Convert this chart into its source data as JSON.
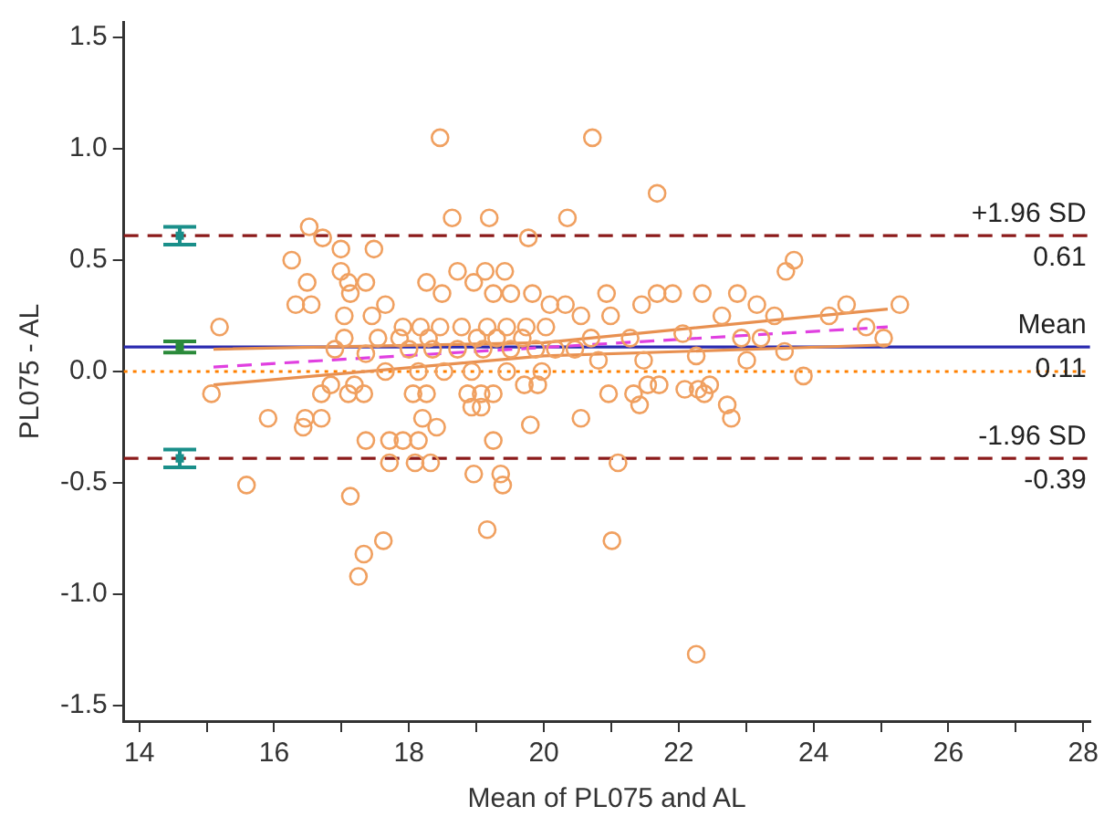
{
  "chart_data": {
    "type": "scatter",
    "xlabel": "Mean of PL075 and AL",
    "ylabel": "PL075 - AL",
    "xlim": [
      13.77,
      28.1
    ],
    "ylim": [
      -1.57,
      1.57
    ],
    "xticks": [
      14,
      {
        "value": 15,
        "label": null
      },
      16,
      {
        "value": 17,
        "label": null
      },
      18,
      {
        "value": 19,
        "label": null
      },
      20,
      {
        "value": 21,
        "label": null
      },
      22,
      {
        "value": 23,
        "label": null
      },
      24,
      {
        "value": 25,
        "label": null
      },
      26,
      {
        "value": 27,
        "label": null
      },
      28
    ],
    "yticks": [
      {
        "value": -1.5,
        "label": "-1.5"
      },
      {
        "value": -1,
        "label": "-1.0"
      },
      {
        "value": -0.5,
        "label": "-0.5"
      },
      {
        "value": 0,
        "label": "0.0"
      },
      {
        "value": 0.5,
        "label": "0.5"
      },
      {
        "value": 1,
        "label": "1.0"
      },
      {
        "value": 1.5,
        "label": "1.5"
      }
    ],
    "grid": false,
    "legend": false,
    "series": [
      {
        "marker": "circle",
        "color": "#f0a060",
        "x": [
          18.46,
          20.72,
          21.68,
          16.52,
          16.72,
          18.64,
          19.19,
          20.35,
          19.77,
          16.99,
          17.48,
          16.26,
          16.49,
          16.99,
          17.1,
          17.36,
          17.13,
          16.32,
          16.55,
          17.65,
          17.04,
          17.45,
          15.19,
          17.54,
          17.04,
          18.26,
          18.49,
          18.72,
          18.96,
          19.13,
          19.42,
          19.25,
          19.51,
          19.83,
          20.09,
          20.32,
          15.07,
          15.91,
          16.46,
          16.7,
          18.2,
          20.55,
          19.8,
          16.43,
          17.36,
          17.71,
          17.91,
          18.14,
          18.41,
          17.71,
          18.09,
          18.32,
          19.25,
          18.96,
          19.36,
          19.39,
          15.59,
          17.13,
          19.16,
          17.62,
          17.33,
          17.25,
          18.06,
          18.26,
          18.87,
          19.07,
          19.25,
          19.71,
          19.91,
          18.93,
          19.07,
          16.84,
          17.19,
          16.7,
          17.1,
          17.33,
          20.96,
          21.33,
          21.42,
          21.54,
          21.71,
          22.38,
          22.46,
          22.72,
          22.78,
          21.1,
          21.01,
          22.26,
          23.85,
          22.09,
          22.29,
          23.71,
          23.59,
          25.28,
          24.49,
          24.23,
          24.78,
          25.04,
          20.93,
          21.68,
          21.91,
          22.35,
          22.87,
          23.16,
          20.55,
          20.99,
          21.45,
          22.64,
          23.42,
          20.7,
          21.28,
          22.06,
          22.93,
          23.22,
          20.81,
          21.48,
          22.26,
          23.01,
          23.57,
          18.17,
          18.46,
          18.78,
          19.16,
          19.45,
          19.74,
          20.03,
          18.0,
          18.35,
          18.72,
          19.1,
          19.51,
          19.88,
          20.17,
          20.46,
          17.65,
          18.14,
          18.52,
          18.93,
          19.45,
          19.97,
          17.86,
          18.29,
          19.01,
          19.3,
          19.68,
          16.9,
          17.36,
          17.91
        ],
        "values": [
          1.05,
          1.05,
          0.8,
          0.65,
          0.6,
          0.69,
          0.69,
          0.69,
          0.6,
          0.55,
          0.55,
          0.5,
          0.4,
          0.45,
          0.4,
          0.4,
          0.35,
          0.3,
          0.3,
          0.3,
          0.25,
          0.25,
          0.2,
          0.15,
          0.15,
          0.4,
          0.35,
          0.45,
          0.4,
          0.45,
          0.45,
          0.35,
          0.35,
          0.35,
          0.3,
          0.3,
          -0.1,
          -0.21,
          -0.21,
          -0.21,
          -0.21,
          -0.21,
          -0.24,
          -0.25,
          -0.31,
          -0.31,
          -0.31,
          -0.31,
          -0.25,
          -0.41,
          -0.41,
          -0.41,
          -0.31,
          -0.46,
          -0.46,
          -0.51,
          -0.51,
          -0.56,
          -0.71,
          -0.76,
          -0.82,
          -0.92,
          -0.1,
          -0.1,
          -0.1,
          -0.1,
          -0.1,
          -0.06,
          -0.06,
          -0.16,
          -0.16,
          -0.06,
          -0.06,
          -0.1,
          -0.1,
          -0.1,
          -0.1,
          -0.1,
          -0.15,
          -0.06,
          -0.06,
          -0.1,
          -0.06,
          -0.15,
          -0.21,
          -0.41,
          -0.76,
          -1.27,
          -0.02,
          -0.08,
          -0.08,
          0.5,
          0.45,
          0.3,
          0.3,
          0.25,
          0.2,
          0.15,
          0.35,
          0.35,
          0.35,
          0.35,
          0.35,
          0.3,
          0.25,
          0.25,
          0.3,
          0.25,
          0.25,
          0.15,
          0.15,
          0.17,
          0.15,
          0.15,
          0.05,
          0.05,
          0.07,
          0.05,
          0.09,
          0.2,
          0.2,
          0.2,
          0.2,
          0.2,
          0.2,
          0.2,
          0.1,
          0.1,
          0.1,
          0.1,
          0.1,
          0.1,
          0.1,
          0.1,
          0,
          0,
          0,
          0,
          0,
          0,
          0.15,
          0.15,
          0.15,
          0.15,
          0.15,
          0.1,
          0.08,
          0.2
        ]
      },
      {
        "type": "line",
        "color": "#e040e0",
        "line_style": "dashed",
        "x": [
          15.1,
          25.1
        ],
        "values": [
          0.02,
          0.2
        ]
      },
      {
        "type": "line",
        "color": "#e89050",
        "line_style": "solid",
        "x": [
          15.1,
          20,
          25.1
        ],
        "values": [
          -0.06,
          0.07,
          0.12
        ]
      },
      {
        "type": "line",
        "color": "#e89050",
        "line_style": "solid",
        "x": [
          15.1,
          20,
          25.1
        ],
        "values": [
          0.1,
          0.13,
          0.28
        ]
      },
      {
        "type": "scatter",
        "marker": "square",
        "color": "#1a8f8a",
        "x": [
          14.6,
          14.6
        ],
        "values": [
          0.61,
          -0.39
        ],
        "errors": [
          0.04,
          0.04
        ]
      },
      {
        "type": "scatter",
        "marker": "square",
        "color": "#2a8a3a",
        "x": [
          14.6
        ],
        "values": [
          0.11
        ],
        "errors": [
          0.025
        ]
      }
    ],
    "ref_lines": [
      {
        "axis": "y",
        "value": 0.61,
        "label": "+1.96 SD\n0.61",
        "color": "#8b1a1a",
        "line_style": "dashed"
      },
      {
        "axis": "y",
        "value": 0.11,
        "label": "Mean\n0.11",
        "color": "#2b2bb0",
        "line_style": "solid"
      },
      {
        "axis": "y",
        "value": -0.39,
        "label": "-1.96 SD\n-0.39",
        "color": "#8b1a1a",
        "line_style": "dashed"
      },
      {
        "axis": "y",
        "value": 0,
        "color": "#ff8000",
        "line_style": "dotted"
      }
    ]
  }
}
